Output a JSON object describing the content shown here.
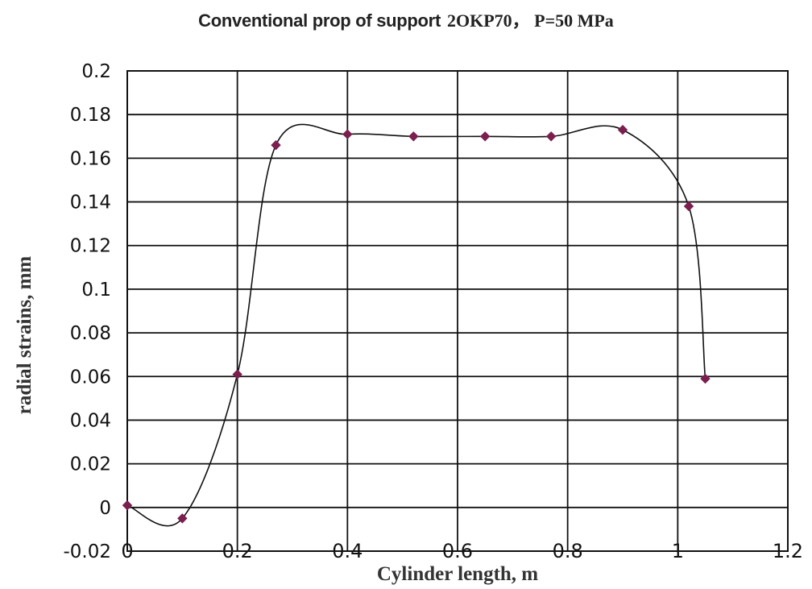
{
  "title_main": "Conventional prop of support",
  "title_sub": "2OKP70， P=50 MPa",
  "chart_data": {
    "type": "scatter",
    "title": "Conventional prop of support 2OKP70， P=50 MPa",
    "xlabel": "Cylinder length, m",
    "ylabel": "radial strains, mm",
    "xlim": [
      0,
      1.2
    ],
    "ylim": [
      -0.02,
      0.2
    ],
    "xticks": [
      "0",
      "0.2",
      "0.4",
      "0.6",
      "0.8",
      "1",
      "1.2"
    ],
    "yticks": [
      "-0.02",
      "0",
      "0.02",
      "0.04",
      "0.06",
      "0.08",
      "0.1",
      "0.12",
      "0.14",
      "0.16",
      "0.18",
      "0.2"
    ],
    "grid": true,
    "line": "smoothed",
    "series": [
      {
        "x": [
          0,
          0.1,
          0.2,
          0.27,
          0.4,
          0.52,
          0.65,
          0.77,
          0.9,
          1.02,
          1.05
        ],
        "y": [
          0.001,
          -0.005,
          0.061,
          0.166,
          0.171,
          0.17,
          0.17,
          0.17,
          0.173,
          0.138,
          0.059
        ],
        "color": "#7a1f4e"
      }
    ]
  }
}
